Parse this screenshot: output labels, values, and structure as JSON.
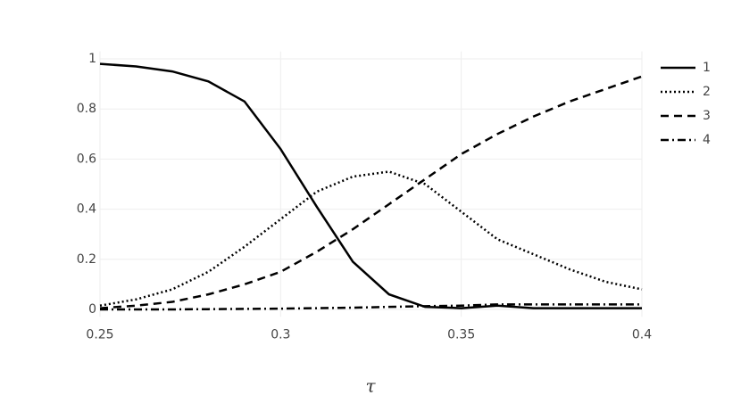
{
  "chart_data": {
    "type": "line",
    "x_label": "τ",
    "x": [
      0.25,
      0.26,
      0.27,
      0.28,
      0.29,
      0.3,
      0.31,
      0.32,
      0.33,
      0.34,
      0.35,
      0.36,
      0.37,
      0.38,
      0.39,
      0.4
    ],
    "series": [
      {
        "name": "1",
        "color": "#000000",
        "dash": "solid",
        "values": [
          0.98,
          0.97,
          0.95,
          0.91,
          0.83,
          0.64,
          0.41,
          0.19,
          0.06,
          0.01,
          0.005,
          0.015,
          0.005,
          0.005,
          0.005,
          0.005
        ]
      },
      {
        "name": "2",
        "color": "#000000",
        "dash": "dot",
        "values": [
          0.015,
          0.04,
          0.08,
          0.15,
          0.25,
          0.36,
          0.47,
          0.53,
          0.55,
          0.5,
          0.39,
          0.28,
          0.22,
          0.16,
          0.11,
          0.08
        ]
      },
      {
        "name": "3",
        "color": "#000000",
        "dash": "dash",
        "values": [
          0.005,
          0.015,
          0.03,
          0.06,
          0.1,
          0.15,
          0.23,
          0.32,
          0.42,
          0.52,
          0.62,
          0.7,
          0.77,
          0.83,
          0.88,
          0.93
        ]
      },
      {
        "name": "4",
        "color": "#000000",
        "dash": "dashdot",
        "values": [
          0,
          0,
          0,
          0.001,
          0.002,
          0.003,
          0.005,
          0.007,
          0.01,
          0.013,
          0.015,
          0.02,
          0.02,
          0.02,
          0.02,
          0.02
        ]
      }
    ],
    "xlim": [
      0.25,
      0.4
    ],
    "xticks": [
      0.25,
      0.3,
      0.35,
      0.4
    ],
    "ylim": [
      -0.03,
      1.03
    ],
    "yticks": [
      0,
      0.2,
      0.4,
      0.6,
      0.8,
      1
    ],
    "grid": true,
    "legend": "top-right"
  }
}
